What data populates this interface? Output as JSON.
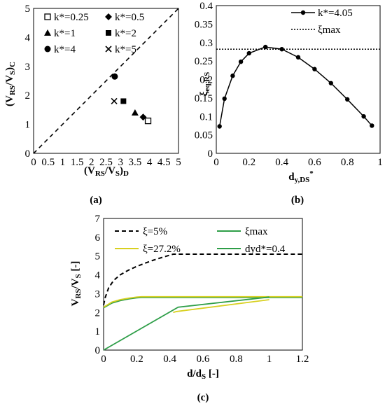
{
  "panels": [
    {
      "id": "a",
      "label": "(a)"
    },
    {
      "id": "b",
      "label": "(b)"
    },
    {
      "id": "c",
      "label": "(c)"
    }
  ],
  "chart_data": [
    {
      "panel": "a",
      "type": "scatter",
      "xlabel": "(V_RS/V_S)_D",
      "ylabel": "(V_RS/V_S)_C",
      "xlim": [
        0,
        5
      ],
      "ylim": [
        0,
        5
      ],
      "xticks": [
        "0",
        "0.5",
        "1",
        "1.5",
        "2",
        "2.5",
        "3",
        "3.5",
        "4",
        "4.5",
        "5"
      ],
      "yticks": [
        "0",
        "1",
        "2",
        "3",
        "4",
        "5"
      ],
      "grid": false,
      "legend_position": "top-left",
      "reference_line": {
        "style": "dashed",
        "from": [
          0,
          0
        ],
        "to": [
          5,
          5
        ]
      },
      "series": [
        {
          "name": "k*=0.25",
          "marker": "open-square",
          "points": [
            [
              3.95,
              1.12
            ]
          ]
        },
        {
          "name": "k*=0.5",
          "marker": "diamond",
          "points": [
            [
              3.78,
              1.25
            ]
          ]
        },
        {
          "name": "k*=1",
          "marker": "triangle",
          "points": [
            [
              3.5,
              1.4
            ]
          ]
        },
        {
          "name": "k*=2",
          "marker": "square",
          "points": [
            [
              3.1,
              1.8
            ]
          ]
        },
        {
          "name": "k*=4",
          "marker": "circle",
          "points": [
            [
              2.8,
              2.65
            ]
          ]
        },
        {
          "name": "k*=5",
          "marker": "cross",
          "points": [
            [
              2.78,
              1.8
            ]
          ]
        }
      ]
    },
    {
      "panel": "b",
      "type": "line",
      "xlabel": "d_y,DS*",
      "ylabel": "ξ_eq,RS",
      "xlim": [
        0,
        1
      ],
      "ylim": [
        0,
        0.4
      ],
      "xticks": [
        "0",
        "0.2",
        "0.4",
        "0.6",
        "0.8",
        "1"
      ],
      "yticks": [
        "0",
        "0.05",
        "0.1",
        "0.15",
        "0.2",
        "0.25",
        "0.3",
        "0.35",
        "0.4"
      ],
      "grid": false,
      "legend_position": "top-right",
      "series": [
        {
          "name": "k*=4.05",
          "style": "solid-with-dots",
          "x": [
            0.02,
            0.05,
            0.1,
            0.15,
            0.2,
            0.3,
            0.4,
            0.5,
            0.6,
            0.7,
            0.8,
            0.9,
            0.95
          ],
          "y": [
            0.073,
            0.148,
            0.21,
            0.248,
            0.271,
            0.288,
            0.282,
            0.26,
            0.228,
            0.19,
            0.146,
            0.1,
            0.075
          ]
        },
        {
          "name": "ξmax",
          "style": "dotted",
          "x": [
            0,
            1
          ],
          "y": [
            0.282,
            0.282
          ]
        }
      ]
    },
    {
      "panel": "c",
      "type": "line",
      "xlabel": "d/d_S [-]",
      "ylabel": "V_RS/V_S [-]",
      "xlim": [
        0,
        1.2
      ],
      "ylim": [
        0,
        7
      ],
      "xticks": [
        "0",
        "0.2",
        "0.4",
        "0.6",
        "0.8",
        "1",
        "1.2"
      ],
      "yticks": [
        "0",
        "1",
        "2",
        "3",
        "4",
        "5",
        "6",
        "7"
      ],
      "grid": false,
      "legend_position": "top",
      "series": [
        {
          "name": "ξ=5%",
          "color": "#000000",
          "style": "dashed",
          "x": [
            0.0,
            0.01,
            0.03,
            0.06,
            0.1,
            0.15,
            0.2,
            0.25,
            0.3,
            0.35,
            0.4,
            0.42,
            1.2
          ],
          "y": [
            2.4,
            2.8,
            3.3,
            3.7,
            4.0,
            4.25,
            4.45,
            4.62,
            4.78,
            4.92,
            5.05,
            5.1,
            5.1
          ]
        },
        {
          "name": "ξmax",
          "color": "#2e9e48",
          "style": "solid",
          "x": [
            0.0,
            0.05,
            0.1,
            0.15,
            0.2,
            0.23,
            1.2
          ],
          "y": [
            2.25,
            2.5,
            2.63,
            2.72,
            2.78,
            2.8,
            2.8
          ]
        },
        {
          "name": "ξ=27.2%",
          "color": "#d8d020",
          "style": "solid",
          "x": [
            0.0,
            0.05,
            0.1,
            0.15,
            0.2,
            0.23,
            1.2
          ],
          "y": [
            2.28,
            2.55,
            2.68,
            2.76,
            2.82,
            2.84,
            2.84
          ]
        },
        {
          "name": "dyd*=0.4",
          "color": "#2e9e48",
          "style": "solid",
          "x": [
            0.0,
            0.45,
            1.0
          ],
          "y": [
            0.0,
            2.28,
            2.82
          ]
        },
        {
          "name": "",
          "color": "#d8d020",
          "style": "solid",
          "x": [
            0.42,
            0.44,
            1.0
          ],
          "y": [
            2.0,
            2.05,
            2.68
          ]
        }
      ]
    }
  ]
}
